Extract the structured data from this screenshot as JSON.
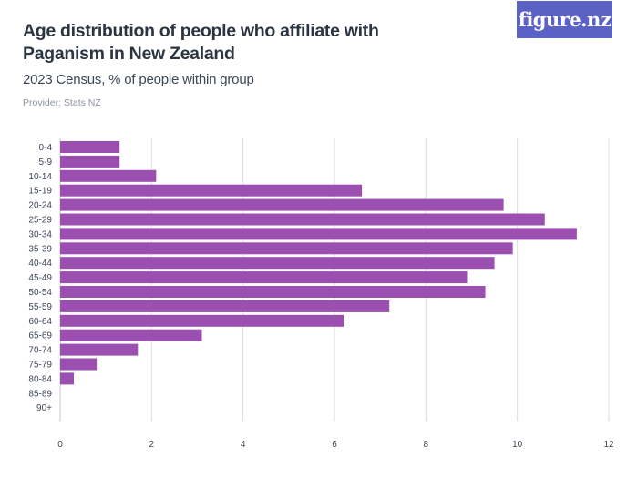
{
  "header": {
    "title": "Age distribution of people who affiliate with Paganism in New Zealand",
    "subtitle": "2023 Census, % of people within group",
    "provider": "Provider: Stats NZ",
    "logo_text": "figure.nz"
  },
  "colors": {
    "bar": "#9b4fb0",
    "grid": "#dcdcdc",
    "logo_bg": "#5b62c6"
  },
  "chart_data": {
    "type": "bar",
    "orientation": "horizontal",
    "title": "Age distribution of people who affiliate with Paganism in New Zealand",
    "subtitle": "2023 Census, % of people within group",
    "categories": [
      "0-4",
      "5-9",
      "10-14",
      "15-19",
      "20-24",
      "25-29",
      "30-34",
      "35-39",
      "40-44",
      "45-49",
      "50-54",
      "55-59",
      "60-64",
      "65-69",
      "70-74",
      "75-79",
      "80-84",
      "85-89",
      "90+"
    ],
    "values": [
      1.3,
      1.3,
      2.1,
      6.6,
      9.7,
      10.6,
      11.3,
      9.9,
      9.5,
      8.9,
      9.3,
      7.2,
      6.2,
      3.1,
      1.7,
      0.8,
      0.3,
      0,
      0
    ],
    "xlim": [
      0,
      12
    ],
    "xticks": [
      0,
      2,
      4,
      6,
      8,
      10,
      12
    ],
    "grid": true,
    "legend": "none"
  }
}
